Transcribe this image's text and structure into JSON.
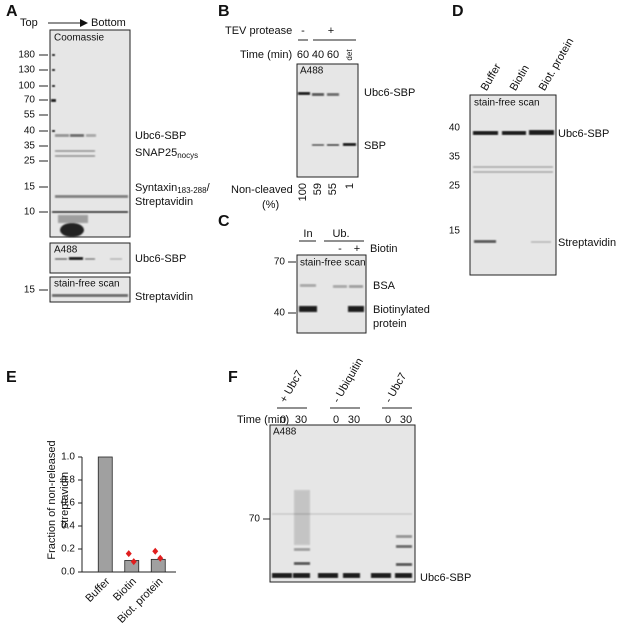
{
  "panel_a": {
    "label": "A",
    "top": "Top",
    "bottom": "Bottom",
    "gel": "Coomassie",
    "markers": [
      180,
      130,
      100,
      70,
      55,
      40,
      35,
      25,
      15,
      10
    ],
    "ubc6": "Ubc6-SBP",
    "snap25": "SNAP25",
    "snap25_sub": "nocys",
    "syntaxin": "Syntaxin",
    "syntaxin_sub": "183-288",
    "slash": "/",
    "streptavidin": "Streptavidin",
    "a488_gel": "A488",
    "a488_band": "Ubc6-SBP",
    "sf_gel": "stain-free scan",
    "sf_marker": 15,
    "sf_band": "Streptavidin"
  },
  "panel_b": {
    "label": "B",
    "tev": "TEV protease",
    "tev_minus": "-",
    "tev_plus": "+",
    "time": "Time (min)",
    "times": [
      "60",
      "40",
      "60",
      "det"
    ],
    "gel": "A488",
    "ubc6": "Ubc6-SBP",
    "sbp": "SBP",
    "noncleaved": "Non-cleaved",
    "unit": "(%)",
    "percents": [
      100,
      59,
      55,
      1
    ]
  },
  "panel_c": {
    "label": "C",
    "in": "In",
    "ub": "Ub.",
    "minus": "-",
    "plus": "+",
    "biotin": "Biotin",
    "gel": "stain-free scan",
    "markers": [
      70,
      40
    ],
    "bsa": "BSA",
    "biotinylated": [
      "Biotinylated",
      "protein"
    ]
  },
  "panel_d": {
    "label": "D",
    "lanes": [
      "Buffer",
      "Biotin",
      "Biot. protein"
    ],
    "gel": "stain-free scan",
    "markers": [
      40,
      35,
      25,
      15
    ],
    "ubc6": "Ubc6-SBP",
    "streptavidin": "Streptavidin"
  },
  "chart_data": {
    "type": "bar",
    "label": "E",
    "ylabel": [
      "Fraction of non-released",
      "streptavidin"
    ],
    "categories": [
      "Buffer",
      "Biotin",
      "Biot. protein"
    ],
    "values": [
      1.0,
      0.1,
      0.11
    ],
    "color": "#a0a0a0",
    "replicates": [
      null,
      [
        0.16,
        0.09
      ],
      [
        0.18,
        0.12
      ]
    ],
    "replicate_color": "#e01e1e",
    "ylim": [
      0,
      1.0
    ],
    "yticks": [
      {
        "value": 0,
        "label": "0.0"
      },
      0.2,
      0.4,
      0.6,
      0.8,
      {
        "value": 1.0,
        "label": "1.0"
      }
    ]
  },
  "panel_f": {
    "label": "F",
    "time": "Time (min)",
    "conditions": [
      "+ Ubc7",
      "- Ubiquitin",
      "- Ubc7"
    ],
    "times": [
      0,
      30,
      0,
      30,
      0,
      30
    ],
    "gel": "A488",
    "marker": 70,
    "band": "Ubc6-SBP"
  }
}
